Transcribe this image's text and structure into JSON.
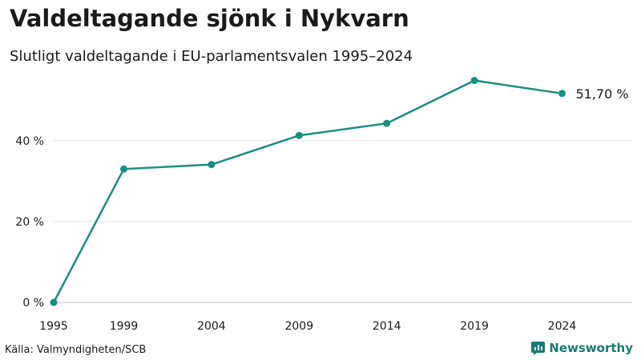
{
  "title": "Valdeltagande sjönk i Nykvarn",
  "subtitle": "Slutligt valdeltagande i EU-parlamentsvalen 1995–2024",
  "source": "Källa: Valmyndigheten/SCB",
  "brand": {
    "name": "Newsworthy",
    "icon": "newsworthy-logo-icon",
    "color": "#1a7a74"
  },
  "chart_data": {
    "type": "line",
    "x": [
      1995,
      1999,
      2004,
      2009,
      2014,
      2019,
      2024
    ],
    "series": [
      {
        "values": [
          0,
          33.0,
          34.1,
          41.3,
          44.3,
          54.9,
          51.7
        ],
        "color": "#1a8f7f"
      }
    ],
    "xticks": [
      "1995",
      "1999",
      "2004",
      "2009",
      "2014",
      "2019",
      "2024"
    ],
    "yticks": [
      {
        "value": 0,
        "label": "0 %"
      },
      {
        "value": 20,
        "label": "20 %"
      },
      {
        "value": 40,
        "label": "40 %"
      }
    ],
    "ylim": [
      0,
      57
    ],
    "xlim": [
      1995,
      2028
    ],
    "end_label": "51,70 %",
    "grid": true,
    "xlabel": "",
    "ylabel": ""
  }
}
